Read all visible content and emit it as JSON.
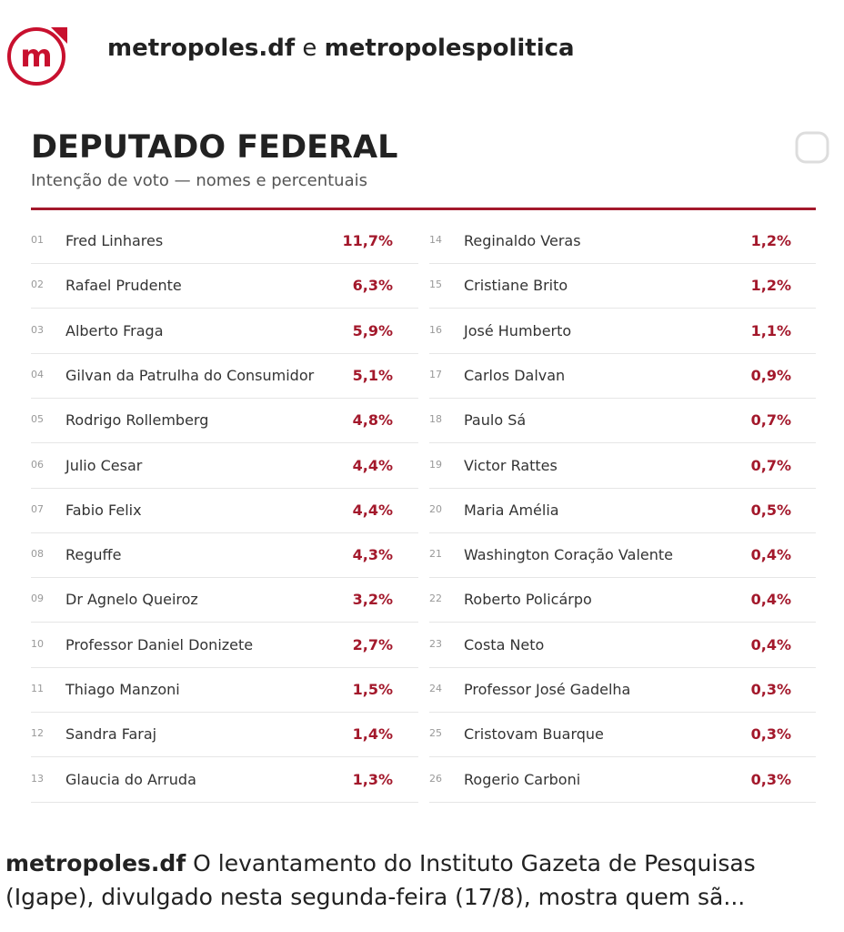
{
  "header": {
    "account": "metropoles.df",
    "connector": "e",
    "account2": "metropolespolitica"
  },
  "table": {
    "title": "DEPUTADO FEDERAL",
    "subtitle": "Intenção de voto — nomes e percentuais",
    "rows": [
      [
        "01",
        "Fred Linhares",
        "11,7%"
      ],
      [
        "02",
        "Rafael Prudente",
        "6,3%"
      ],
      [
        "03",
        "Alberto Fraga",
        "5,9%"
      ],
      [
        "04",
        "Gilvan da Patrulha do Consumidor",
        "5,1%"
      ],
      [
        "05",
        "Rodrigo Rollemberg",
        "4,8%"
      ],
      [
        "06",
        "Julio Cesar",
        "4,4%"
      ],
      [
        "07",
        "Fabio Felix",
        "4,4%"
      ],
      [
        "08",
        "Reguffe",
        "4,3%"
      ],
      [
        "09",
        "Dr Agnelo Queiroz",
        "3,2%"
      ],
      [
        "10",
        "Professor Daniel Donizete",
        "2,7%"
      ],
      [
        "11",
        "Thiago Manzoni",
        "1,5%"
      ],
      [
        "12",
        "Sandra Faraj",
        "1,4%"
      ],
      [
        "13",
        "Glaucia do Arruda",
        "1,3%"
      ],
      [
        "14",
        "Reginaldo Veras",
        "1,2%"
      ],
      [
        "15",
        "Cristiane Brito",
        "1,2%"
      ],
      [
        "16",
        "José Humberto",
        "1,1%"
      ],
      [
        "17",
        "Carlos Dalvan",
        "0,9%"
      ],
      [
        "18",
        "Paulo Sá",
        "0,7%"
      ],
      [
        "19",
        "Victor Rattes",
        "0,7%"
      ],
      [
        "20",
        "Maria Amélia",
        "0,5%"
      ],
      [
        "21",
        "Washington Coração Valente",
        "0,4%"
      ],
      [
        "22",
        "Roberto Policárpo",
        "0,4%"
      ],
      [
        "23",
        "Costa Neto",
        "0,4%"
      ],
      [
        "24",
        "Professor José Gadelha",
        "0,3%"
      ],
      [
        "25",
        "Cristovam Buarque",
        "0,3%"
      ],
      [
        "26",
        "Rogerio Carboni",
        "0,3%"
      ]
    ]
  },
  "caption": {
    "author": "metropoles.df",
    "text": "O levantamento do Instituto Gazeta de Pesquisas (Igape), divulgado nesta segunda-feira (17/8), mostra quem sã..."
  }
}
